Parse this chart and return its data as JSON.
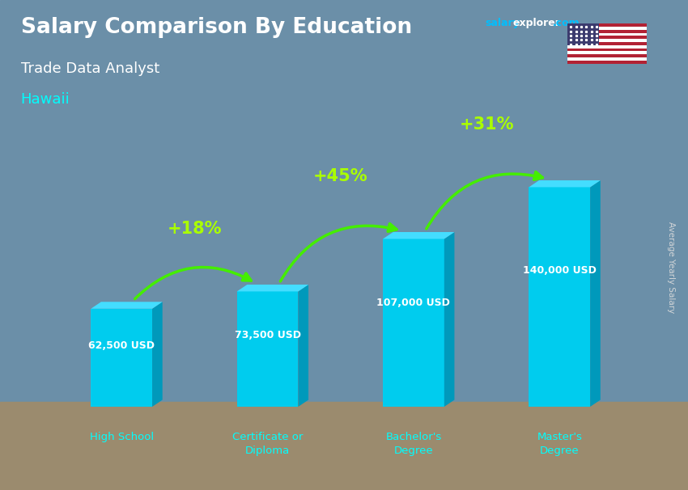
{
  "title": "Salary Comparison By Education",
  "subtitle": "Trade Data Analyst",
  "location": "Hawaii",
  "categories": [
    "High School",
    "Certificate or\nDiploma",
    "Bachelor's\nDegree",
    "Master's\nDegree"
  ],
  "values": [
    62500,
    73500,
    107000,
    140000
  ],
  "value_labels": [
    "62,500 USD",
    "73,500 USD",
    "107,000 USD",
    "140,000 USD"
  ],
  "pct_changes": [
    "+18%",
    "+45%",
    "+31%"
  ],
  "bar_color": "#00CCEE",
  "bar_right_color": "#0099BB",
  "bar_top_color": "#44DDFF",
  "bg_color": "#6B8FA8",
  "bg_bottom_color": "#9B8B6E",
  "title_color": "#FFFFFF",
  "subtitle_color": "#FFFFFF",
  "location_color": "#00FFFF",
  "value_label_color": "#FFFFFF",
  "pct_color": "#AAFF00",
  "arrow_color": "#44EE00",
  "ylabel_text": "Average Yearly Salary",
  "salary_color1": "#00BFFF",
  "salary_color2": "#FFFFFF",
  "ylim_max": 175000,
  "fig_width": 8.5,
  "fig_height": 6.06,
  "dpi": 100
}
